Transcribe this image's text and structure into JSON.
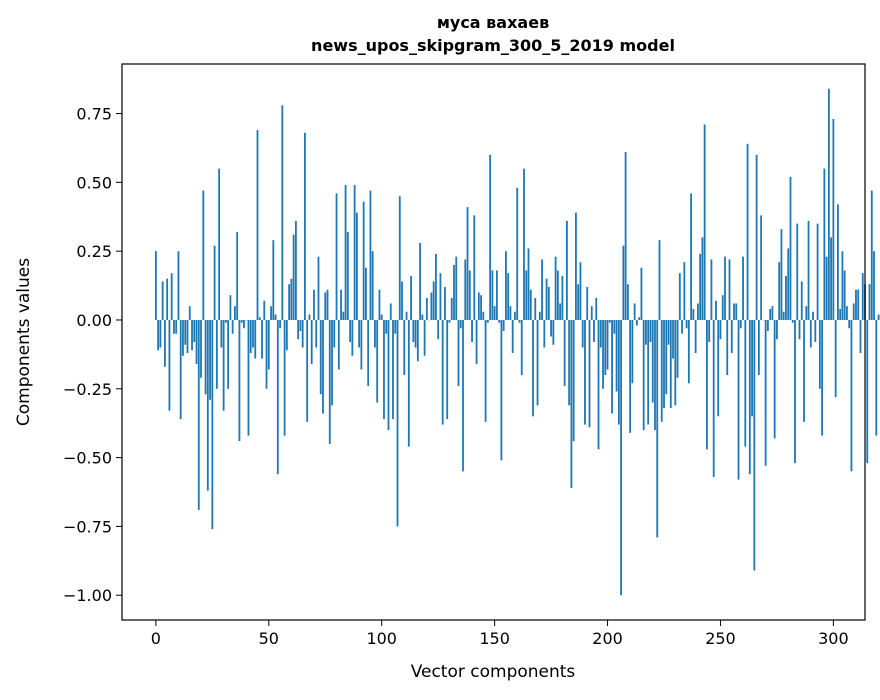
{
  "chart_data": {
    "type": "bar",
    "title": "муса вахаев",
    "subtitle": "news_upos_skipgram_300_5_2019 model",
    "xlabel": "Vector components",
    "ylabel": "Components values",
    "xlim": [
      -15,
      314
    ],
    "ylim": [
      -1.09,
      0.93
    ],
    "x_ticks": [
      0,
      50,
      100,
      150,
      200,
      250,
      300
    ],
    "y_ticks": [
      0.75,
      0.5,
      0.25,
      0.0,
      -0.25,
      -0.5,
      -0.75,
      -1.0
    ],
    "y_tick_labels": [
      "0.75",
      "0.50",
      "0.25",
      "0.00",
      "−0.25",
      "−0.50",
      "−0.75",
      "−1.00"
    ],
    "bar_color": "#1f77b4",
    "grid": false,
    "x_start": 0,
    "values": [
      0.25,
      -0.11,
      -0.1,
      0.14,
      -0.17,
      0.15,
      -0.33,
      0.17,
      -0.05,
      -0.05,
      0.25,
      -0.36,
      -0.13,
      -0.09,
      -0.12,
      0.05,
      -0.11,
      -0.08,
      -0.16,
      -0.69,
      -0.21,
      0.47,
      -0.27,
      -0.62,
      -0.29,
      -0.76,
      0.27,
      -0.25,
      0.55,
      -0.1,
      -0.33,
      -0.01,
      -0.25,
      0.09,
      -0.05,
      0.05,
      0.32,
      -0.44,
      -0.01,
      -0.03,
      0.0,
      -0.42,
      -0.12,
      -0.1,
      -0.14,
      0.69,
      0.01,
      -0.14,
      0.07,
      -0.25,
      -0.18,
      0.05,
      0.29,
      0.02,
      -0.56,
      -0.03,
      0.78,
      -0.42,
      -0.11,
      0.13,
      0.15,
      0.31,
      0.36,
      -0.07,
      -0.04,
      -0.1,
      0.68,
      -0.37,
      0.02,
      -0.16,
      0.11,
      -0.1,
      0.23,
      -0.27,
      -0.34,
      0.1,
      0.11,
      -0.45,
      -0.31,
      -0.1,
      0.46,
      -0.18,
      0.11,
      0.03,
      0.49,
      0.32,
      -0.08,
      -0.13,
      0.49,
      0.39,
      -0.1,
      -0.18,
      0.43,
      0.19,
      -0.24,
      0.47,
      0.25,
      -0.1,
      -0.3,
      0.11,
      0.02,
      -0.36,
      -0.05,
      -0.4,
      0.06,
      -0.36,
      -0.05,
      -0.75,
      0.45,
      0.14,
      -0.2,
      0.03,
      -0.46,
      0.16,
      -0.08,
      -0.1,
      -0.15,
      0.28,
      0.02,
      -0.13,
      0.08,
      0.0,
      0.1,
      0.14,
      0.24,
      -0.07,
      0.17,
      -0.38,
      0.12,
      -0.36,
      -0.01,
      0.08,
      0.2,
      0.23,
      -0.24,
      -0.03,
      -0.55,
      0.22,
      0.41,
      0.18,
      -0.08,
      0.38,
      -0.16,
      0.1,
      0.09,
      0.03,
      -0.37,
      -0.01,
      0.6,
      0.18,
      0.05,
      0.18,
      -0.01,
      -0.51,
      -0.04,
      0.25,
      0.17,
      0.05,
      -0.12,
      0.03,
      0.48,
      -0.01,
      -0.2,
      0.55,
      0.18,
      0.26,
      0.11,
      -0.35,
      0.08,
      -0.31,
      0.03,
      0.22,
      -0.1,
      0.15,
      0.12,
      -0.06,
      -0.09,
      0.23,
      0.18,
      0.06,
      0.16,
      -0.24,
      0.36,
      -0.31,
      -0.61,
      -0.44,
      0.39,
      0.13,
      0.21,
      -0.1,
      -0.38,
      0.12,
      -0.39,
      0.05,
      -0.08,
      0.08,
      -0.47,
      -0.1,
      -0.25,
      -0.2,
      -0.18,
      -0.01,
      -0.34,
      -0.05,
      -0.26,
      -0.38,
      -1.0,
      0.27,
      0.61,
      0.13,
      -0.41,
      -0.23,
      0.06,
      -0.02,
      0.01,
      0.19,
      -0.4,
      -0.09,
      -0.38,
      -0.08,
      -0.3,
      -0.4,
      -0.79,
      0.29,
      -0.37,
      -0.32,
      -0.27,
      -0.09,
      -0.32,
      -0.14,
      -0.31,
      -0.21,
      0.17,
      -0.05,
      0.21,
      -0.03,
      -0.23,
      0.46,
      0.04,
      -0.12,
      0.06,
      0.24,
      0.3,
      0.71,
      -0.47,
      -0.08,
      0.22,
      -0.57,
      0.07,
      -0.35,
      -0.07,
      0.09,
      0.23,
      -0.2,
      0.22,
      -0.12,
      0.06,
      0.06,
      -0.58,
      -0.03,
      0.23,
      -0.46,
      0.64,
      -0.56,
      -0.35,
      -0.91,
      0.6,
      -0.2,
      0.38,
      0.0,
      -0.53,
      -0.04,
      0.04,
      0.05,
      -0.43,
      -0.07,
      0.21,
      0.33,
      0.03,
      0.16,
      0.26,
      0.52,
      -0.01,
      -0.52,
      0.35,
      -0.07,
      0.14,
      -0.37,
      0.05,
      0.36,
      -0.1,
      0.03,
      -0.08,
      0.35,
      -0.25,
      -0.42,
      0.55,
      0.23,
      0.84,
      0.3,
      0.73,
      -0.28,
      0.42,
      0.04,
      0.25,
      0.18,
      0.05,
      -0.03,
      -0.55,
      0.06,
      0.11,
      0.11,
      -0.12,
      0.17,
      0.13,
      -0.52,
      0.13,
      0.47,
      0.25,
      -0.42,
      0.02,
      0.02
    ]
  }
}
